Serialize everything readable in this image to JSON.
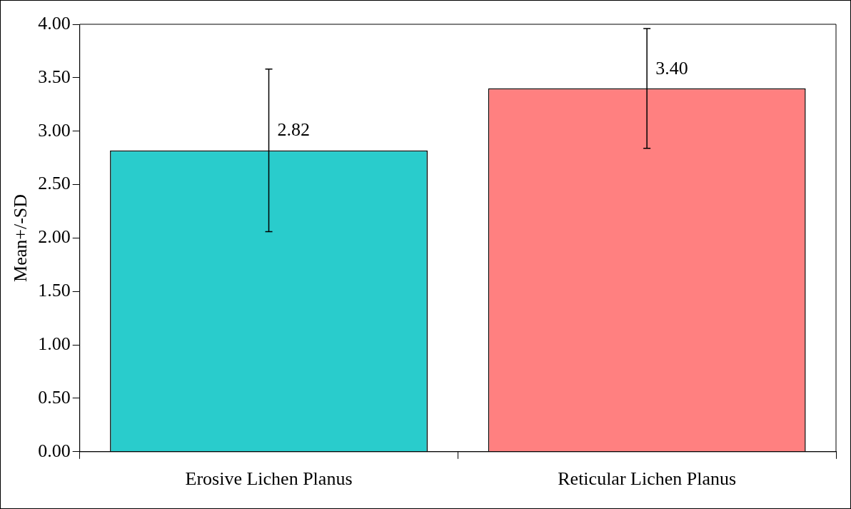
{
  "chart_data": {
    "type": "bar",
    "ylabel": "Mean+/-SD",
    "categories": [
      "Erosive Lichen Planus",
      "Reticular Lichen Planus"
    ],
    "values": [
      2.82,
      3.4
    ],
    "colors": [
      "#29cccc",
      "#ff8080"
    ],
    "errors": [
      0.76,
      0.56
    ],
    "value_labels": [
      "2.82",
      "3.40"
    ],
    "ylim": [
      0,
      4
    ],
    "yticks": [
      {
        "value": 0,
        "label": "0.00"
      },
      {
        "value": 0.5,
        "label": "0.50"
      },
      {
        "value": 1,
        "label": "1.00"
      },
      {
        "value": 1.5,
        "label": "1.50"
      },
      {
        "value": 2,
        "label": "2.00"
      },
      {
        "value": 2.5,
        "label": "2.50"
      },
      {
        "value": 3,
        "label": "3.00"
      },
      {
        "value": 3.5,
        "label": "3.50"
      },
      {
        "value": 4,
        "label": "4.00"
      }
    ],
    "grid": false,
    "legend": false
  }
}
